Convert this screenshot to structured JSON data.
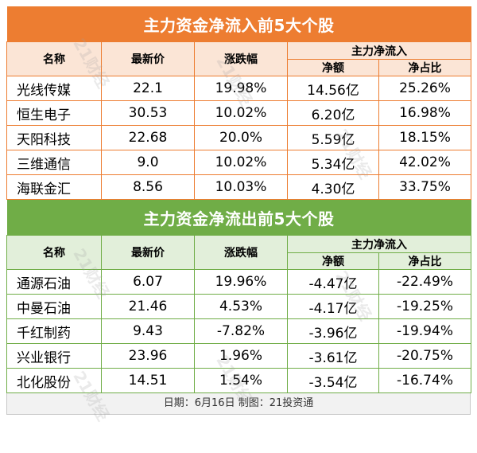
{
  "inflow": {
    "title": "主力资金净流入前5大个股",
    "headers": {
      "name": "名称",
      "price": "最新价",
      "change": "涨跌幅",
      "group": "主力净流入",
      "net": "净额",
      "ratio": "净占比"
    },
    "rows": [
      {
        "name": "光线传媒",
        "price": "22.1",
        "change": "19.98%",
        "net": "14.56亿",
        "ratio": "25.26%"
      },
      {
        "name": "恒生电子",
        "price": "30.53",
        "change": "10.02%",
        "net": "6.20亿",
        "ratio": "16.98%"
      },
      {
        "name": "天阳科技",
        "price": "22.68",
        "change": "20.0%",
        "net": "5.59亿",
        "ratio": "18.15%"
      },
      {
        "name": "三维通信",
        "price": "9.0",
        "change": "10.02%",
        "net": "5.34亿",
        "ratio": "42.02%"
      },
      {
        "name": "海联金汇",
        "price": "8.56",
        "change": "10.03%",
        "net": "4.30亿",
        "ratio": "33.75%"
      }
    ]
  },
  "outflow": {
    "title": "主力资金净流出前5大个股",
    "headers": {
      "name": "名称",
      "price": "最新价",
      "change": "涨跌幅",
      "group": "主力净流入",
      "net": "净额",
      "ratio": "净占比"
    },
    "rows": [
      {
        "name": "通源石油",
        "price": "6.07",
        "change": "19.96%",
        "net": "-4.47亿",
        "ratio": "-22.49%"
      },
      {
        "name": "中曼石油",
        "price": "21.46",
        "change": "4.53%",
        "net": "-4.17亿",
        "ratio": "-19.25%"
      },
      {
        "name": "千红制药",
        "price": "9.43",
        "change": "-7.82%",
        "net": "-3.96亿",
        "ratio": "-19.94%"
      },
      {
        "name": "兴业银行",
        "price": "23.96",
        "change": "1.96%",
        "net": "-3.61亿",
        "ratio": "-20.75%"
      },
      {
        "name": "北化股份",
        "price": "14.51",
        "change": "1.54%",
        "net": "-3.54亿",
        "ratio": "-16.74%"
      }
    ]
  },
  "footer": "日期：6月16日 制图：21投资通",
  "watermark": "21财经",
  "colors": {
    "inflow_accent": "#ed7d31",
    "inflow_header_bg": "#fbe5d6",
    "outflow_accent": "#70ad47",
    "outflow_header_bg": "#e2efda"
  }
}
